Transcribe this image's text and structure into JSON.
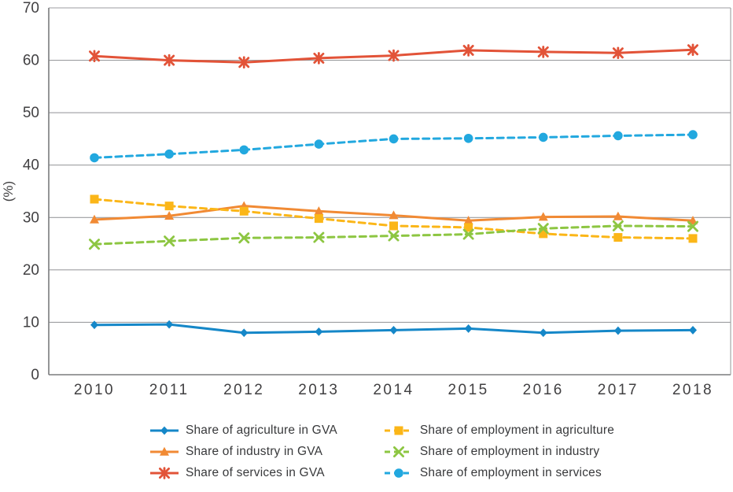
{
  "figure": {
    "title": "",
    "ylabel": "(%)",
    "colors": {
      "grid": "#9d9ea0",
      "axis": "#7a7b7d",
      "tick_text": "#414042",
      "legend_text": "#38393b"
    }
  },
  "chart_data": {
    "type": "line",
    "categories": [
      "2010",
      "2011",
      "2012",
      "2013",
      "2014",
      "2015",
      "2016",
      "2017",
      "2018"
    ],
    "title": "",
    "xlabel": "",
    "ylabel": "(%)",
    "ylim": [
      0,
      70
    ],
    "ytick_step": 10,
    "grid": "horizontal",
    "legend_position": "bottom",
    "series": [
      {
        "name": "Share of agriculture in GVA",
        "color": "#1587c8",
        "style": "solid",
        "marker": "diamond",
        "values": [
          9.5,
          9.6,
          8.0,
          8.2,
          8.5,
          8.8,
          8.0,
          8.4,
          8.5
        ]
      },
      {
        "name": "Share of industry in GVA",
        "color": "#f18a34",
        "style": "solid",
        "marker": "triangle",
        "values": [
          29.6,
          30.3,
          32.2,
          31.2,
          30.4,
          29.4,
          30.1,
          30.2,
          29.4
        ]
      },
      {
        "name": "Share of services in GVA",
        "color": "#e25338",
        "style": "solid",
        "marker": "asterisk",
        "values": [
          60.8,
          60.0,
          59.6,
          60.4,
          60.9,
          61.9,
          61.6,
          61.4,
          62.0
        ]
      },
      {
        "name": "Share of employment in agriculture",
        "color": "#fbb618",
        "style": "dashed",
        "marker": "square",
        "values": [
          33.5,
          32.2,
          31.2,
          29.8,
          28.4,
          28.1,
          26.9,
          26.2,
          26.0
        ]
      },
      {
        "name": "Share of employment in industry",
        "color": "#8dc642",
        "style": "dashed",
        "marker": "xcross",
        "values": [
          24.9,
          25.5,
          26.1,
          26.2,
          26.5,
          26.8,
          27.9,
          28.4,
          28.3
        ]
      },
      {
        "name": "Share of employment in services",
        "color": "#22a8df",
        "style": "dashed",
        "marker": "circle",
        "values": [
          41.4,
          42.1,
          42.9,
          44.0,
          45.0,
          45.1,
          45.3,
          45.6,
          45.8
        ]
      }
    ]
  }
}
